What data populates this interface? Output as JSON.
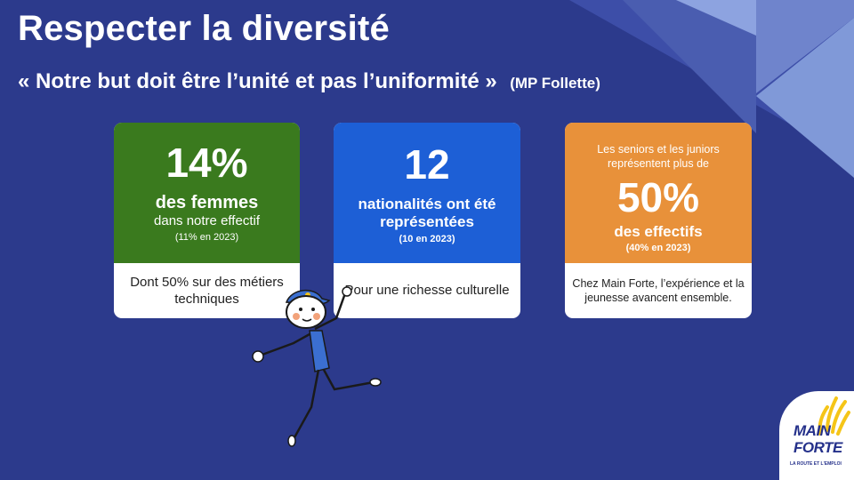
{
  "header": {
    "title": "Respecter la diversité",
    "quote": "« Notre but doit être l’unité et pas l’uniformité »",
    "author": "(MP Follette)"
  },
  "cards": [
    {
      "stat": "14%",
      "headline": "des femmes",
      "detail": "dans notre effectif",
      "comparison": "(11% en 2023)",
      "footer": "Dont 50% sur des métiers techniques",
      "color": "#3a7a1e"
    },
    {
      "stat": "12",
      "headline": "nationalités ont été représentées",
      "comparison": "(10 en 2023)",
      "footer": "Pour une richesse culturelle",
      "color": "#1d5fd6"
    },
    {
      "intro": "Les seniors et les juniors représentent plus de",
      "stat": "50%",
      "headline": "des effectifs",
      "comparison": "(40% en 2023)",
      "footer": "Chez Main Forte, l’expérience et la jeunesse avancent ensemble.",
      "color": "#e8913a"
    }
  ],
  "logo": {
    "line1": "MAIN",
    "line2": "FORTE",
    "tagline": "LA ROUTE ET L'EMPLOI",
    "accent": "#f5c518"
  },
  "colors": {
    "background": "#2c3a8c",
    "decor_light": "#7b93d6",
    "decor_mid": "#4a5db0"
  },
  "icons": [
    "stick-figure-mascot",
    "hand-logo-icon"
  ]
}
